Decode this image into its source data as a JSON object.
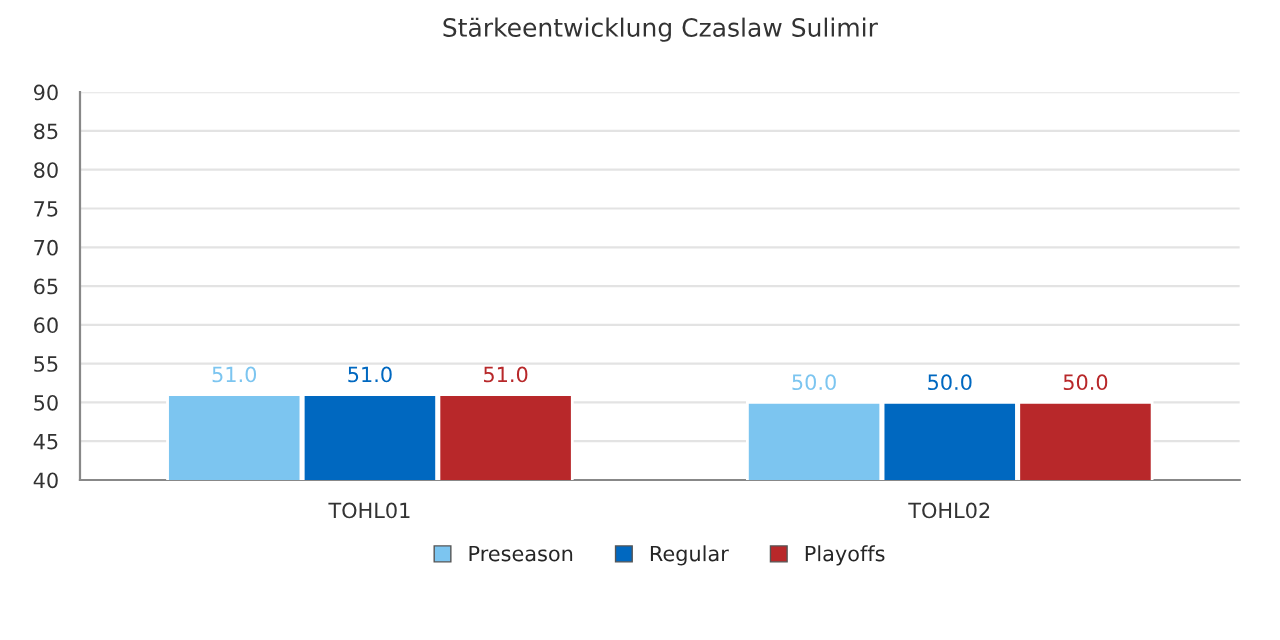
{
  "chart_data": {
    "type": "bar",
    "title": "Stärkeentwicklung Czaslaw Sulimir",
    "categories": [
      "TOHL01",
      "TOHL02"
    ],
    "series": [
      {
        "name": "Preseason",
        "color": "#7cc5f0",
        "values": [
          51,
          50
        ],
        "value_labels": [
          "51.0",
          "50.0"
        ]
      },
      {
        "name": "Regular",
        "color": "#0068c0",
        "values": [
          51,
          50
        ],
        "value_labels": [
          "51.0",
          "50.0"
        ]
      },
      {
        "name": "Playoffs",
        "color": "#b8282a",
        "values": [
          51,
          50
        ],
        "value_labels": [
          "51.0",
          "50.0"
        ]
      }
    ],
    "ylim": [
      40,
      90
    ],
    "yticks": [
      40,
      45,
      50,
      55,
      60,
      65,
      70,
      75,
      80,
      85,
      90
    ],
    "grid": "y",
    "legend": "bottom"
  }
}
